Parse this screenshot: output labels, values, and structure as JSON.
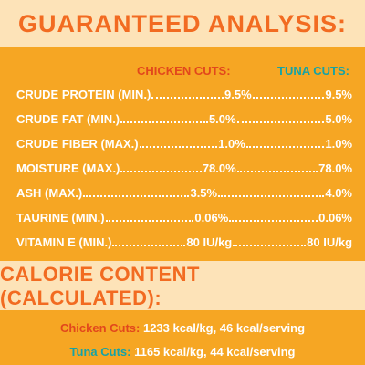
{
  "title": "GUARANTEED ANALYSIS:",
  "columns": {
    "chicken": "CHICKEN CUTS:",
    "tuna": "TUNA CUTS:"
  },
  "rows": [
    {
      "label": "CRUDE PROTEIN (MIN.)",
      "chicken": "9.5%",
      "tuna": "9.5%"
    },
    {
      "label": "CRUDE FAT (MIN.)",
      "chicken": "5.0%",
      "tuna": "5.0%"
    },
    {
      "label": "CRUDE FIBER (MAX.)",
      "chicken": "1.0%",
      "tuna": "1.0%"
    },
    {
      "label": "MOISTURE (MAX.)",
      "chicken": "78.0%",
      "tuna": "78.0%"
    },
    {
      "label": "ASH (MAX.)",
      "chicken": "3.5%",
      "tuna": "4.0%"
    },
    {
      "label": "TAURINE (MIN.)",
      "chicken": "0.06%",
      "tuna": "0.06%"
    },
    {
      "label": "VITAMIN E (MIN.)",
      "chicken": "80 IU/kg",
      "tuna": "80 IU/kg"
    }
  ],
  "calorie": {
    "title": "CALORIE CONTENT (CALCULATED):",
    "chicken_name": "Chicken Cuts:",
    "chicken_value": "1233 kcal/kg, 46 kcal/serving",
    "tuna_name": "Tuna Cuts:",
    "tuna_value": "1165 kcal/kg, 44 kcal/serving"
  },
  "colors": {
    "title_orange": "#f26b21",
    "panel_orange": "#f6a623",
    "background_cream": "#fde3b8",
    "chicken_red": "#e2471c",
    "tuna_teal": "#15a3a6"
  }
}
